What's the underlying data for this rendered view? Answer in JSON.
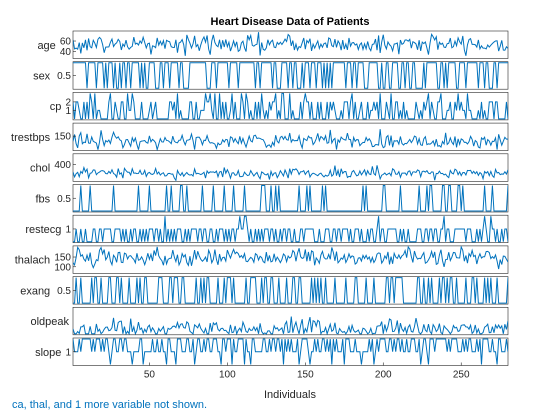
{
  "chart_data": {
    "type": "line",
    "chart_style": "stacked-plot",
    "title": "Heart Disease Data of Patients",
    "xlabel": "Individuals",
    "xlim": [
      1,
      280
    ],
    "x_ticks": [
      "50",
      "100",
      "150",
      "200",
      "250"
    ],
    "x_tick_values": [
      50,
      100,
      150,
      200,
      250
    ],
    "line_color": "#0072bd",
    "grid": false,
    "series": [
      {
        "name": "age",
        "ylim": [
          29,
          77
        ],
        "ticks": [
          {
            "label": "60",
            "value": 60
          },
          {
            "label": "40",
            "value": 40
          }
        ],
        "kind": "continuous",
        "mean": 54,
        "sd": 9
      },
      {
        "name": "sex",
        "ylim": [
          0,
          1
        ],
        "ticks": [
          {
            "label": "0.5",
            "value": 0.5
          }
        ],
        "kind": "binary",
        "p": 0.68
      },
      {
        "name": "cp",
        "ylim": [
          0,
          3
        ],
        "ticks": [
          {
            "label": "2",
            "value": 2
          },
          {
            "label": "1",
            "value": 1
          }
        ],
        "kind": "discrete",
        "levels": [
          0,
          1,
          2,
          3
        ],
        "weights": [
          0.47,
          0.17,
          0.28,
          0.08
        ]
      },
      {
        "name": "trestbps",
        "ylim": [
          94,
          200
        ],
        "ticks": [
          {
            "label": "150",
            "value": 150
          }
        ],
        "kind": "continuous",
        "mean": 131,
        "sd": 17
      },
      {
        "name": "chol",
        "ylim": [
          126,
          564
        ],
        "ticks": [
          {
            "label": "400",
            "value": 400
          }
        ],
        "kind": "continuous",
        "mean": 246,
        "sd": 45
      },
      {
        "name": "fbs",
        "ylim": [
          0,
          1
        ],
        "ticks": [
          {
            "label": "0.5",
            "value": 0.5
          }
        ],
        "kind": "binary",
        "p": 0.15
      },
      {
        "name": "restecg",
        "ylim": [
          0,
          2
        ],
        "ticks": [
          {
            "label": "1",
            "value": 1
          }
        ],
        "kind": "discrete",
        "levels": [
          0,
          1,
          2
        ],
        "weights": [
          0.45,
          0.53,
          0.02
        ]
      },
      {
        "name": "thalach",
        "ylim": [
          71,
          202
        ],
        "ticks": [
          {
            "label": "150",
            "value": 150
          },
          {
            "label": "100",
            "value": 100
          }
        ],
        "kind": "continuous",
        "mean": 150,
        "sd": 22
      },
      {
        "name": "exang",
        "ylim": [
          0,
          1
        ],
        "ticks": [
          {
            "label": "0.5",
            "value": 0.5
          }
        ],
        "kind": "binary",
        "p": 0.33
      },
      {
        "name": "oldpeak",
        "ylim": [
          0,
          6.2
        ],
        "ticks": [],
        "kind": "continuous",
        "mean": 1.0,
        "sd": 1.1,
        "clip_min": 0
      },
      {
        "name": "slope",
        "ylim": [
          0,
          2
        ],
        "ticks": [
          {
            "label": "1",
            "value": 1
          }
        ],
        "kind": "discrete",
        "levels": [
          0,
          1,
          2
        ],
        "weights": [
          0.07,
          0.46,
          0.47
        ]
      }
    ]
  },
  "footnote": "ca, thal, and 1 more variable not shown."
}
